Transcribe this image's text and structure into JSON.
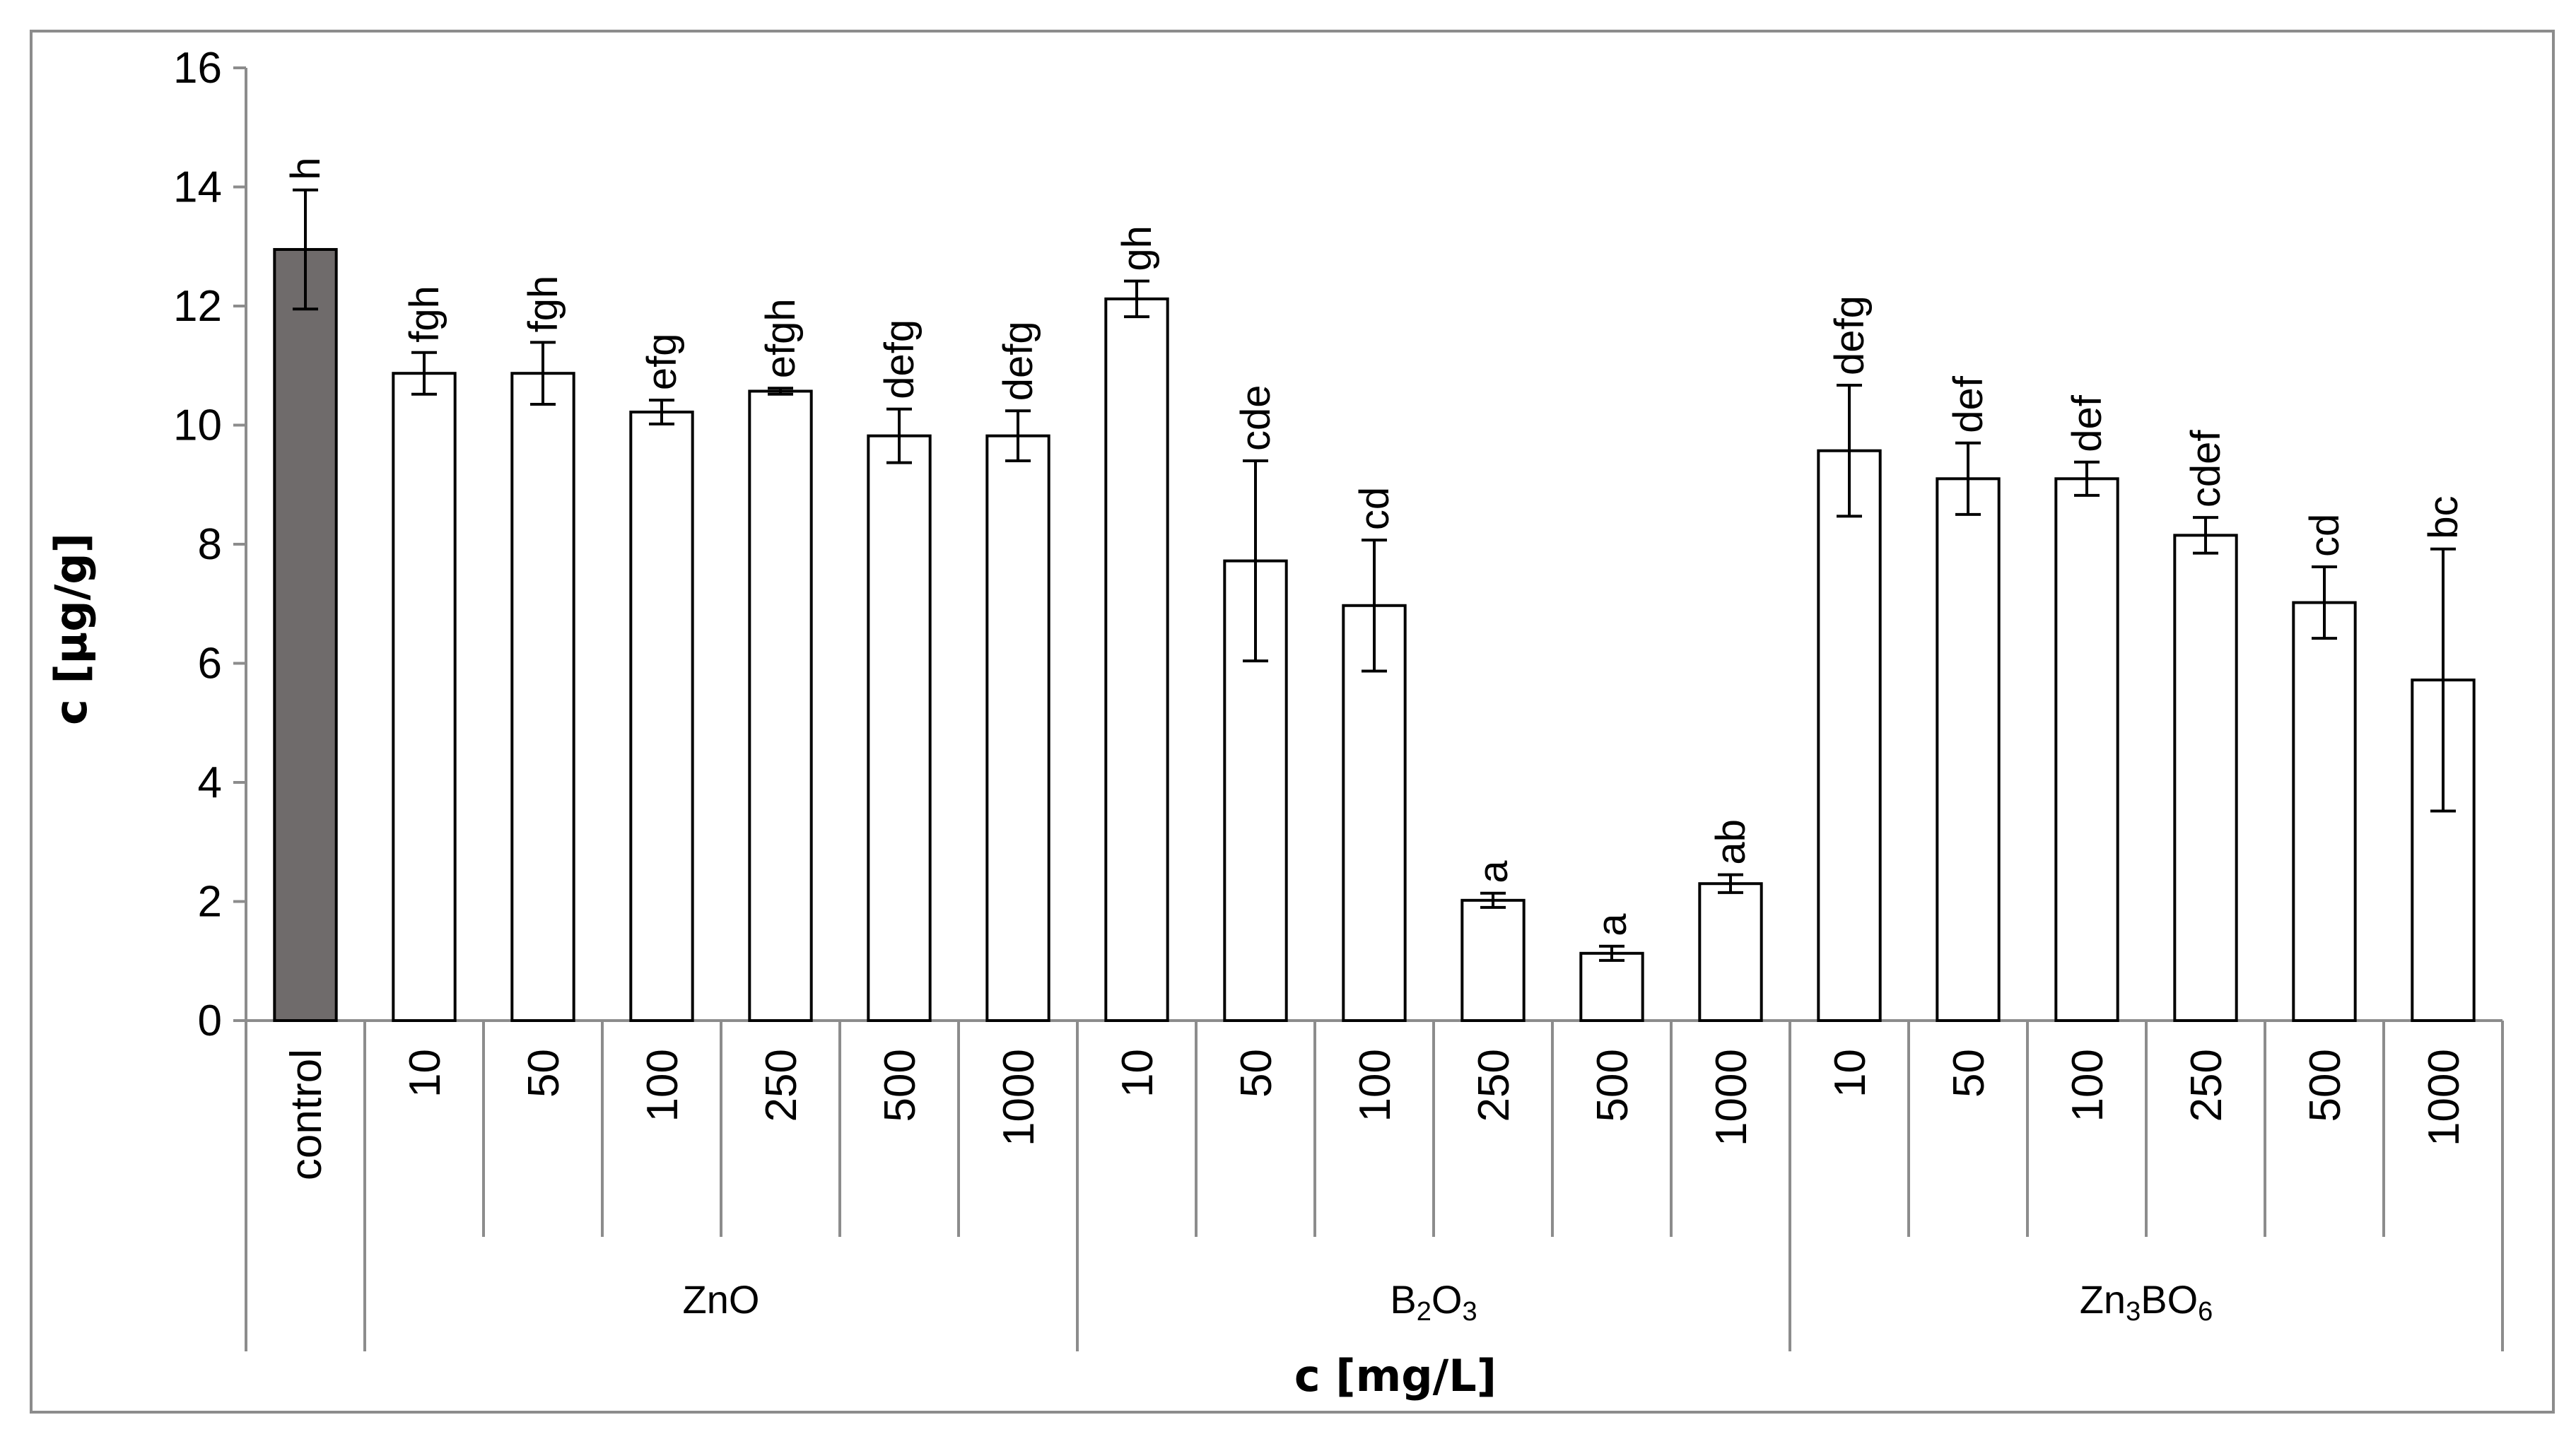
{
  "chart_data": {
    "type": "bar",
    "ylabel": "c [µg/g]",
    "xlabel": "c [mg/L]",
    "ylim": [
      0,
      16
    ],
    "yticks": [
      0,
      2,
      4,
      6,
      8,
      10,
      12,
      14,
      16
    ],
    "grid": false,
    "legend": "none",
    "colors": {
      "control_fill": "#6f6b6b",
      "bar_fill": "#ffffff",
      "stroke": "#000000",
      "axis": "#8c8c8c",
      "frame": "#8c8c8c"
    },
    "groups": [
      {
        "name": "",
        "name_parts": [],
        "bars": [
          {
            "label": "control",
            "value": 12.95,
            "error": 1.0,
            "sig": "h",
            "control": true
          }
        ]
      },
      {
        "name": "ZnO",
        "name_parts": [
          {
            "t": "ZnO",
            "sub": false
          }
        ],
        "bars": [
          {
            "label": "10",
            "value": 10.87,
            "error": 0.35,
            "sig": "fgh"
          },
          {
            "label": "50",
            "value": 10.87,
            "error": 0.52,
            "sig": "fgh"
          },
          {
            "label": "100",
            "value": 10.22,
            "error": 0.2,
            "sig": "efg"
          },
          {
            "label": "250",
            "value": 10.57,
            "error": 0.05,
            "sig": "efgh"
          },
          {
            "label": "500",
            "value": 9.82,
            "error": 0.45,
            "sig": "defg"
          },
          {
            "label": "1000",
            "value": 9.82,
            "error": 0.42,
            "sig": "defg"
          }
        ]
      },
      {
        "name": "B2O3",
        "name_parts": [
          {
            "t": "B",
            "sub": false
          },
          {
            "t": "2",
            "sub": true
          },
          {
            "t": "O",
            "sub": false
          },
          {
            "t": "3",
            "sub": true
          }
        ],
        "bars": [
          {
            "label": "10",
            "value": 12.12,
            "error": 0.3,
            "sig": "gh"
          },
          {
            "label": "50",
            "value": 7.72,
            "error": 1.68,
            "sig": "cde"
          },
          {
            "label": "100",
            "value": 6.97,
            "error": 1.1,
            "sig": "cd"
          },
          {
            "label": "250",
            "value": 2.02,
            "error": 0.12,
            "sig": "a"
          },
          {
            "label": "500",
            "value": 1.13,
            "error": 0.12,
            "sig": "a"
          },
          {
            "label": "1000",
            "value": 2.3,
            "error": 0.15,
            "sig": "ab"
          }
        ]
      },
      {
        "name": "Zn3BO6",
        "name_parts": [
          {
            "t": "Zn",
            "sub": false
          },
          {
            "t": "3",
            "sub": true
          },
          {
            "t": "BO",
            "sub": false
          },
          {
            "t": "6",
            "sub": true
          }
        ],
        "bars": [
          {
            "label": "10",
            "value": 9.57,
            "error": 1.1,
            "sig": "defg"
          },
          {
            "label": "50",
            "value": 9.1,
            "error": 0.6,
            "sig": "def"
          },
          {
            "label": "100",
            "value": 9.1,
            "error": 0.28,
            "sig": "def"
          },
          {
            "label": "250",
            "value": 8.15,
            "error": 0.3,
            "sig": "cdef"
          },
          {
            "label": "500",
            "value": 7.02,
            "error": 0.6,
            "sig": "cd"
          },
          {
            "label": "1000",
            "value": 5.72,
            "error": 2.2,
            "sig": "bc"
          }
        ]
      }
    ]
  }
}
